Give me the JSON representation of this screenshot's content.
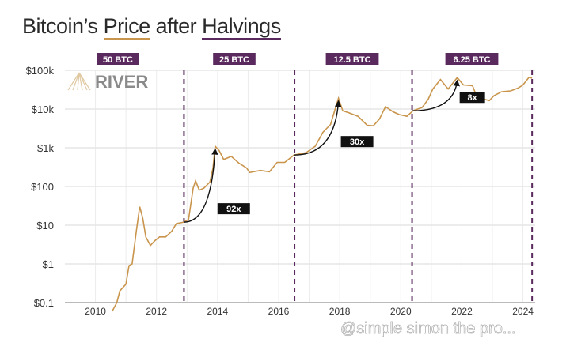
{
  "title": {
    "part1": "Bitcoin’s",
    "part2": "Price",
    "part3": "after",
    "part4": "Halvings"
  },
  "logo": {
    "text": "RIVER"
  },
  "watermark": "@simple simon the pro...",
  "colors": {
    "price_line": "#c9954c",
    "halving": "#5a2a5e",
    "annotation_bg": "#111111",
    "grid": "#e6e6e6"
  },
  "chart_data": {
    "type": "line",
    "title": "Bitcoin’s Price after Halvings",
    "xlabel": "",
    "ylabel": "",
    "x_scale": "linear",
    "y_scale": "log",
    "xlim": [
      2009.0,
      2024.4
    ],
    "ylim": [
      0.1,
      100000
    ],
    "x_ticks": [
      "2010",
      "2012",
      "2014",
      "2016",
      "2018",
      "2020",
      "2022",
      "2024"
    ],
    "y_ticks": [
      "$100k",
      "$10k",
      "$1k",
      "$100",
      "$10",
      "$1",
      "$0.1"
    ],
    "grid": true,
    "series": [
      {
        "x": [
          2010.55,
          2010.7,
          2010.8,
          2011.0,
          2011.1,
          2011.2,
          2011.35,
          2011.45,
          2011.55,
          2011.65,
          2011.8,
          2011.95,
          2012.1,
          2012.3,
          2012.5,
          2012.65,
          2012.9,
          2013.05,
          2013.2,
          2013.28,
          2013.4,
          2013.55,
          2013.75,
          2013.85,
          2013.92,
          2014.05,
          2014.2,
          2014.45,
          2014.7,
          2014.95,
          2015.05,
          2015.4,
          2015.7,
          2015.95,
          2016.2,
          2016.5,
          2016.9,
          2017.2,
          2017.45,
          2017.7,
          2017.85,
          2017.96,
          2018.1,
          2018.3,
          2018.6,
          2018.9,
          2019.1,
          2019.3,
          2019.5,
          2019.75,
          2019.95,
          2020.2,
          2020.4,
          2020.7,
          2020.9,
          2021.05,
          2021.3,
          2021.55,
          2021.85,
          2022.05,
          2022.35,
          2022.5,
          2022.9,
          2023.05,
          2023.3,
          2023.6,
          2023.85,
          2024.0,
          2024.2,
          2024.3
        ],
        "values": [
          0.06,
          0.1,
          0.2,
          0.3,
          0.9,
          1.0,
          8,
          30,
          15,
          5,
          3,
          4,
          5,
          5,
          7,
          11,
          12,
          14,
          90,
          140,
          80,
          90,
          130,
          300,
          1100,
          850,
          500,
          600,
          400,
          300,
          230,
          260,
          240,
          420,
          420,
          650,
          750,
          1100,
          2500,
          4000,
          10000,
          19000,
          9000,
          8000,
          6500,
          3800,
          3700,
          5500,
          11500,
          8500,
          7200,
          6500,
          9000,
          11000,
          18000,
          33000,
          58000,
          33000,
          65000,
          42000,
          40000,
          20000,
          16500,
          22000,
          28000,
          29500,
          35000,
          42000,
          66000,
          63000
        ]
      }
    ],
    "halvings": [
      {
        "x": 2012.9,
        "label": "50 BTC"
      },
      {
        "x": 2016.52,
        "label": "25 BTC"
      },
      {
        "x": 2020.37,
        "label": "12.5 BTC"
      },
      {
        "x": 2024.3,
        "label": "6.25 BTC"
      }
    ],
    "annotations": [
      {
        "text": "92x",
        "from": [
          2012.9,
          12
        ],
        "to": [
          2013.92,
          1100
        ]
      },
      {
        "text": "30x",
        "from": [
          2016.52,
          650
        ],
        "to": [
          2017.96,
          19000
        ]
      },
      {
        "text": "8x",
        "from": [
          2020.37,
          9000
        ],
        "to": [
          2021.85,
          65000
        ]
      }
    ]
  }
}
